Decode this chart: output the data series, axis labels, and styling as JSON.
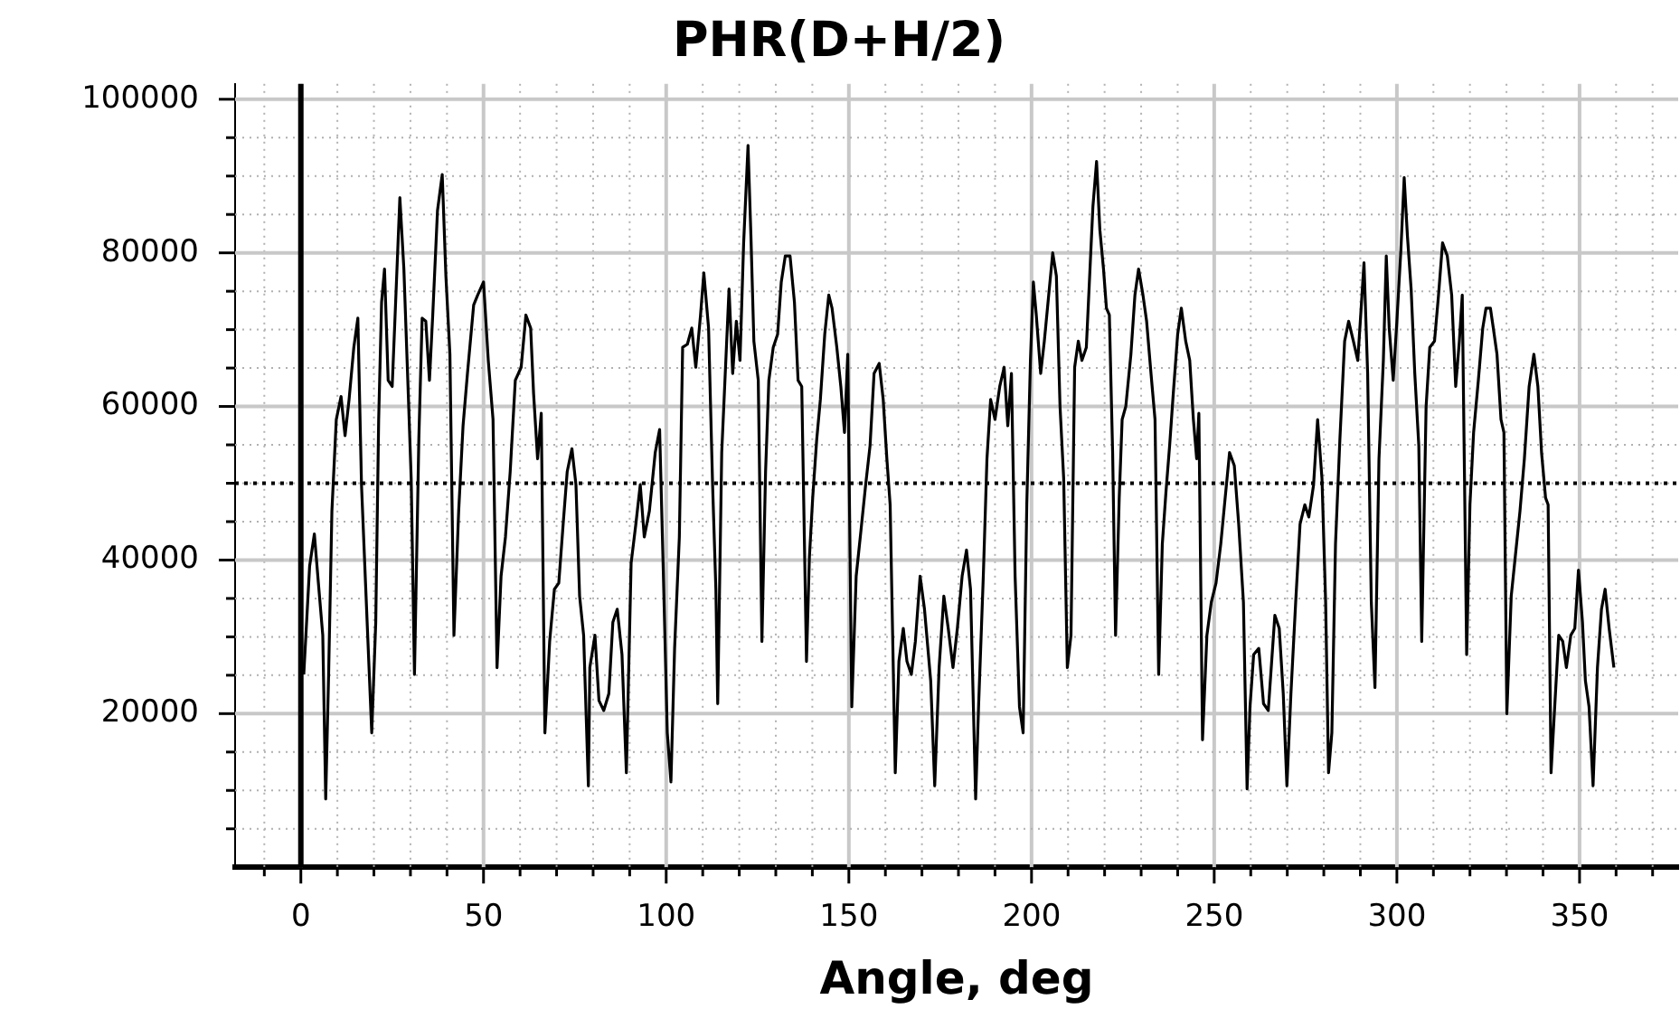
{
  "chart_data": {
    "type": "line",
    "title": "PHR(D+H/2)",
    "xlabel": "Angle, deg",
    "xlim": [
      -18,
      377
    ],
    "ylim": [
      0,
      102000
    ],
    "xticks": [
      {
        "value": -10,
        "label": null
      },
      0,
      {
        "value": 10,
        "label": null
      },
      {
        "value": 20,
        "label": null
      },
      {
        "value": 30,
        "label": null
      },
      {
        "value": 40,
        "label": null
      },
      50,
      {
        "value": 60,
        "label": null
      },
      {
        "value": 70,
        "label": null
      },
      {
        "value": 80,
        "label": null
      },
      {
        "value": 90,
        "label": null
      },
      100,
      {
        "value": 110,
        "label": null
      },
      {
        "value": 120,
        "label": null
      },
      {
        "value": 130,
        "label": null
      },
      {
        "value": 140,
        "label": null
      },
      150,
      {
        "value": 160,
        "label": null
      },
      {
        "value": 170,
        "label": null
      },
      {
        "value": 180,
        "label": null
      },
      {
        "value": 190,
        "label": null
      },
      200,
      {
        "value": 210,
        "label": null
      },
      {
        "value": 220,
        "label": null
      },
      {
        "value": 230,
        "label": null
      },
      {
        "value": 240,
        "label": null
      },
      250,
      {
        "value": 260,
        "label": null
      },
      {
        "value": 270,
        "label": null
      },
      {
        "value": 280,
        "label": null
      },
      {
        "value": 290,
        "label": null
      },
      300,
      {
        "value": 310,
        "label": null
      },
      {
        "value": 320,
        "label": null
      },
      {
        "value": 330,
        "label": null
      },
      {
        "value": 340,
        "label": null
      },
      350,
      {
        "value": 360,
        "label": null
      },
      {
        "value": 370,
        "label": null
      }
    ],
    "yticks": [
      {
        "value": 5000,
        "label": null
      },
      {
        "value": 10000,
        "label": null
      },
      {
        "value": 15000,
        "label": null
      },
      20000,
      {
        "value": 25000,
        "label": null
      },
      {
        "value": 30000,
        "label": null
      },
      {
        "value": 35000,
        "label": null
      },
      40000,
      {
        "value": 45000,
        "label": null
      },
      {
        "value": 50000,
        "label": null
      },
      {
        "value": 55000,
        "label": null
      },
      60000,
      {
        "value": 65000,
        "label": null
      },
      {
        "value": 70000,
        "label": null
      },
      {
        "value": 75000,
        "label": null
      },
      80000,
      {
        "value": 85000,
        "label": null
      },
      {
        "value": 90000,
        "label": null
      },
      {
        "value": 95000,
        "label": null
      },
      100000
    ],
    "grid": true,
    "legend": false,
    "marker": "none",
    "line_style": "solid",
    "ref_lines": [
      {
        "axis": "x",
        "value": 0,
        "label": null,
        "color": "#000000",
        "line_style": "solid"
      },
      {
        "axis": "y",
        "value": 50000,
        "label": null,
        "color": "#000000",
        "line_style": "dotted"
      }
    ],
    "x": [
      0.8,
      2.4,
      3.7,
      4.8,
      6.0,
      6.8,
      7.6,
      8.5,
      9.7,
      11.0,
      12.1,
      13.2,
      14.5,
      15.6,
      16.6,
      17.7,
      19.4,
      20.5,
      21.3,
      22.1,
      22.9,
      23.9,
      25.0,
      25.8,
      27.1,
      28.2,
      29.4,
      30.2,
      31.1,
      32.3,
      33.2,
      34.2,
      35.2,
      36.1,
      37.4,
      38.7,
      39.7,
      40.8,
      41.9,
      43.2,
      44.4,
      45.6,
      47.3,
      48.4,
      50.0,
      51.3,
      52.6,
      53.7,
      54.8,
      56.0,
      57.3,
      58.7,
      60.3,
      61.6,
      62.9,
      63.7,
      64.8,
      65.8,
      66.8,
      68.1,
      69.4,
      70.6,
      71.8,
      72.9,
      74.2,
      75.3,
      76.3,
      77.4,
      78.7,
      79.1,
      80.5,
      81.6,
      82.9,
      84.3,
      85.4,
      86.6,
      87.9,
      89.1,
      90.4,
      91.7,
      92.9,
      94.0,
      95.4,
      97.0,
      98.2,
      99.2,
      100.3,
      101.3,
      102.3,
      103.6,
      104.5,
      105.8,
      107.0,
      108.1,
      109.4,
      110.3,
      111.6,
      112.7,
      113.6,
      114.1,
      115.2,
      116.4,
      117.2,
      118.2,
      119.2,
      120.2,
      121.2,
      122.4,
      123.2,
      124.0,
      125.2,
      126.2,
      127.2,
      128.1,
      129.3,
      130.5,
      131.5,
      132.6,
      133.9,
      135.1,
      136.1,
      137.1,
      138.4,
      139.2,
      140.1,
      141.2,
      142.2,
      143.4,
      144.5,
      145.4,
      146.7,
      147.8,
      148.8,
      149.7,
      150.8,
      152.0,
      153.3,
      154.6,
      155.8,
      156.9,
      158.3,
      159.4,
      160.4,
      161.3,
      162.7,
      163.7,
      164.9,
      165.9,
      167.1,
      168.2,
      169.5,
      170.7,
      172.4,
      173.5,
      174.7,
      176.0,
      177.2,
      178.5,
      179.7,
      181.0,
      182.2,
      183.3,
      184.7,
      185.5,
      186.8,
      187.8,
      188.8,
      190.0,
      191.3,
      192.5,
      193.5,
      194.5,
      195.5,
      196.7,
      197.7,
      198.7,
      199.7,
      200.5,
      201.3,
      202.5,
      203.5,
      204.7,
      205.8,
      206.8,
      207.8,
      208.8,
      209.8,
      210.8,
      211.8,
      212.8,
      213.8,
      215.0,
      216.0,
      216.8,
      217.8,
      218.7,
      219.7,
      220.5,
      221.3,
      222.2,
      223.0,
      224.0,
      224.8,
      225.8,
      227.2,
      228.3,
      229.3,
      230.5,
      231.5,
      232.7,
      233.8,
      234.8,
      235.8,
      236.8,
      237.8,
      238.8,
      240.0,
      241.0,
      242.2,
      243.3,
      244.3,
      245.2,
      245.8,
      246.8,
      248.0,
      249.2,
      250.5,
      251.8,
      253.0,
      254.2,
      255.5,
      256.7,
      258.0,
      259.0,
      259.8,
      260.8,
      262.2,
      263.5,
      264.8,
      266.6,
      267.8,
      268.9,
      269.9,
      271.0,
      272.3,
      273.5,
      274.8,
      275.9,
      277.2,
      278.3,
      279.5,
      280.5,
      281.3,
      282.2,
      283.2,
      284.4,
      285.7,
      286.8,
      288.1,
      289.3,
      290.1,
      291.0,
      292.0,
      293.0,
      294.0,
      295.1,
      296.3,
      297.1,
      297.9,
      299.0,
      300.0,
      301.1,
      302.0,
      302.9,
      303.9,
      304.9,
      306.0,
      306.8,
      308.0,
      309.0,
      310.3,
      311.4,
      312.5,
      313.8,
      315.0,
      316.1,
      317.1,
      317.9,
      319.1,
      320.0,
      321.0,
      322.3,
      323.5,
      324.4,
      325.6,
      326.4,
      327.4,
      328.5,
      329.3,
      330.1,
      331.3,
      332.4,
      333.7,
      334.9,
      336.2,
      337.5,
      338.6,
      339.6,
      340.7,
      341.4,
      342.2,
      343.2,
      344.3,
      345.4,
      346.4,
      347.6,
      348.7,
      349.7,
      350.8,
      351.6,
      352.6,
      353.7,
      354.9,
      356.0,
      357.0,
      358.1,
      359.4
    ],
    "series": [
      {
        "color": "#000000",
        "values": [
          25100,
          39200,
          43400,
          37000,
          30200,
          8900,
          25100,
          46400,
          58300,
          61300,
          56200,
          60900,
          67700,
          71500,
          49800,
          37000,
          17500,
          31900,
          58300,
          73600,
          77900,
          63400,
          62600,
          71900,
          87200,
          77900,
          61700,
          50600,
          25100,
          55900,
          71500,
          71100,
          63400,
          71900,
          85500,
          90200,
          77000,
          66800,
          30200,
          46400,
          57500,
          64300,
          73200,
          74500,
          76200,
          66000,
          58300,
          26000,
          37900,
          43000,
          51500,
          63400,
          65100,
          71900,
          70200,
          61700,
          53200,
          59100,
          17500,
          29400,
          36200,
          37000,
          44700,
          51500,
          54500,
          49800,
          35300,
          30200,
          10600,
          26000,
          30200,
          21700,
          20400,
          22600,
          31900,
          33600,
          27700,
          12300,
          39600,
          44700,
          49800,
          43000,
          46400,
          54000,
          57000,
          38700,
          17500,
          11100,
          28500,
          43000,
          67700,
          68100,
          70200,
          65100,
          71900,
          77400,
          70200,
          49800,
          36200,
          21300,
          54000,
          66800,
          75300,
          64300,
          71100,
          66000,
          81300,
          94000,
          82100,
          68500,
          63400,
          29400,
          51500,
          63400,
          67700,
          69400,
          76200,
          79600,
          79600,
          73600,
          63400,
          62600,
          26800,
          40400,
          48100,
          55700,
          60900,
          69400,
          74500,
          72800,
          67700,
          62600,
          56600,
          66800,
          20900,
          37900,
          43800,
          49800,
          54900,
          64300,
          65600,
          60900,
          53200,
          47200,
          12300,
          26800,
          31100,
          26800,
          25100,
          29400,
          37900,
          33600,
          24300,
          10600,
          26000,
          35300,
          31100,
          26000,
          31100,
          37900,
          41300,
          36200,
          8900,
          20900,
          37900,
          53200,
          60900,
          58300,
          62600,
          65100,
          57500,
          64300,
          37900,
          20900,
          17500,
          47200,
          66000,
          76200,
          71900,
          64300,
          68500,
          74500,
          80000,
          77000,
          60000,
          50600,
          26000,
          30200,
          65100,
          68500,
          66000,
          67700,
          77900,
          86000,
          91900,
          83000,
          77900,
          72800,
          71900,
          54000,
          30200,
          48100,
          58300,
          60000,
          66800,
          74500,
          77900,
          74500,
          71100,
          64300,
          58300,
          25100,
          42100,
          48900,
          54900,
          61700,
          69400,
          72800,
          68500,
          66000,
          58300,
          53200,
          59100,
          16600,
          30200,
          34500,
          37000,
          42100,
          48100,
          54000,
          52300,
          44700,
          34500,
          10200,
          20900,
          27700,
          28500,
          21300,
          20400,
          32800,
          31100,
          22600,
          10600,
          22600,
          34500,
          44700,
          47200,
          45600,
          49800,
          58300,
          50600,
          34500,
          12300,
          17500,
          42100,
          55700,
          68500,
          71100,
          68500,
          66000,
          71900,
          78700,
          64300,
          34500,
          23400,
          53200,
          66000,
          79600,
          70200,
          63400,
          71100,
          80400,
          89800,
          82100,
          75300,
          64300,
          54900,
          29400,
          60000,
          67700,
          68500,
          74500,
          81300,
          79600,
          74500,
          62600,
          68500,
          74500,
          27700,
          47200,
          56600,
          63400,
          70200,
          72800,
          72800,
          70200,
          66800,
          58300,
          56600,
          20000,
          35300,
          40400,
          46400,
          53200,
          62600,
          66800,
          62600,
          54000,
          48100,
          47200,
          12300,
          20900,
          30200,
          29400,
          26000,
          30200,
          31100,
          38700,
          31900,
          24300,
          20900,
          10600,
          26000,
          33600,
          36200,
          31100,
          26000
        ]
      }
    ]
  }
}
